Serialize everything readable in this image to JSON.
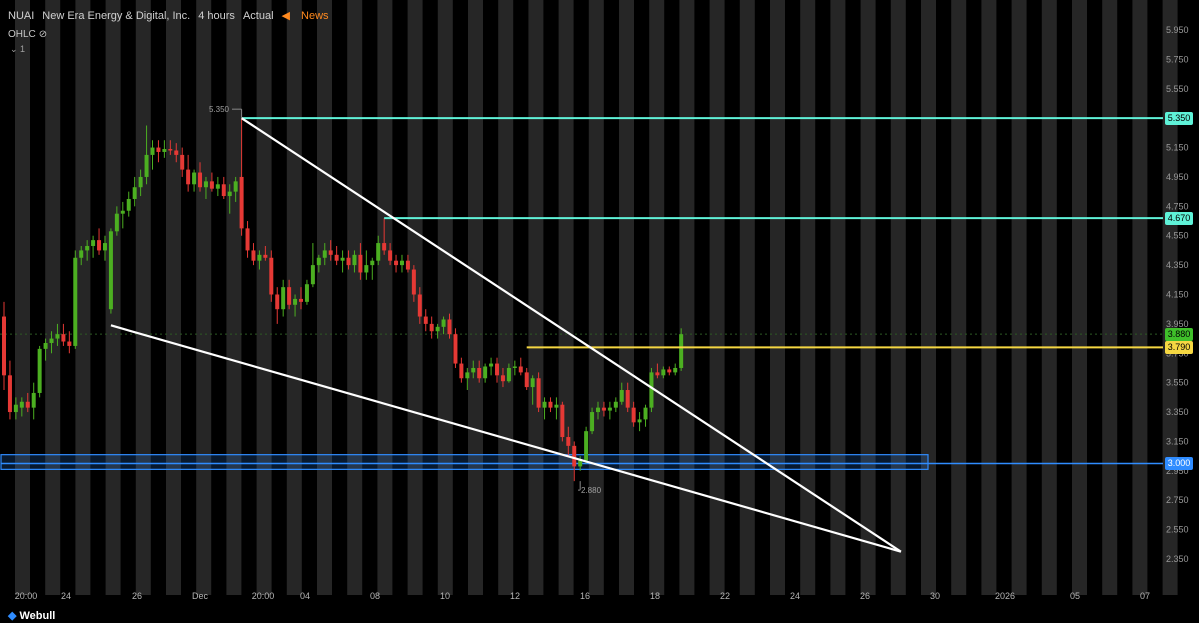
{
  "header": {
    "ticker": "NUAI",
    "company": "New Era Energy & Digital, Inc.",
    "interval": "4 hours",
    "mode": "Actual",
    "news_icon": "speaker-icon",
    "news_label": "News",
    "indicator": "OHLC",
    "indicator_icon": "eye-slash-icon",
    "collapse_label": "1"
  },
  "footer": {
    "brand": "Webull",
    "brand_icon": "webull-logo-icon"
  },
  "colors": {
    "up": "#4caf21",
    "down": "#e53935",
    "resistance": "#5ff2d8",
    "pivot": "#f5d742",
    "support": "#2f8cff",
    "trendline": "#ffffff",
    "session_band": "#262626",
    "last_price": "#3fbf2a"
  },
  "chart_data": {
    "type": "candlestick",
    "timeframe": "4 hours",
    "y_axis": {
      "ticks": [
        "5.950",
        "5.750",
        "5.550",
        "5.350",
        "5.150",
        "4.950",
        "4.750",
        "4.550",
        "4.350",
        "4.150",
        "3.950",
        "3.750",
        "3.550",
        "3.350",
        "3.150",
        "2.950",
        "2.750",
        "2.550",
        "2.350"
      ],
      "range": [
        2.2,
        6.05
      ]
    },
    "x_axis": {
      "labels": [
        "20:00",
        "24",
        "26",
        "Dec",
        "20:00",
        "04",
        "08",
        "10",
        "12",
        "16",
        "18",
        "22",
        "24",
        "26",
        "30",
        "2026",
        "05",
        "07"
      ]
    },
    "price_labels": [
      {
        "value": "5.350",
        "role": "resistance"
      },
      {
        "value": "4.670",
        "role": "resistance"
      },
      {
        "value": "3.880",
        "role": "last_price"
      },
      {
        "value": "3.790",
        "role": "pivot"
      },
      {
        "value": "3.000",
        "role": "support"
      }
    ],
    "annotations": {
      "high": "5.350",
      "low": "2.880"
    },
    "horizontal_lines": [
      {
        "value": 5.35,
        "start_bar": 40,
        "role": "resistance"
      },
      {
        "value": 4.67,
        "start_bar": 64,
        "role": "resistance"
      },
      {
        "value": 3.79,
        "start_bar": 88,
        "role": "pivot"
      }
    ],
    "support_zone": {
      "low": 2.96,
      "high": 3.06,
      "mid": 3.0
    },
    "trendlines": [
      {
        "from": {
          "bar": 40,
          "value": 5.35
        },
        "to": {
          "bar": 151,
          "value": 2.4
        }
      },
      {
        "from": {
          "bar": 18,
          "value": 3.94
        },
        "to": {
          "bar": 151,
          "value": 2.4
        }
      }
    ],
    "candles": [
      [
        4.0,
        4.1,
        3.5,
        3.6
      ],
      [
        3.6,
        3.7,
        3.3,
        3.35
      ],
      [
        3.35,
        3.45,
        3.3,
        3.4
      ],
      [
        3.38,
        3.45,
        3.32,
        3.42
      ],
      [
        3.42,
        3.48,
        3.35,
        3.38
      ],
      [
        3.38,
        3.55,
        3.3,
        3.48
      ],
      [
        3.48,
        3.8,
        3.45,
        3.78
      ],
      [
        3.78,
        3.85,
        3.7,
        3.82
      ],
      [
        3.82,
        3.9,
        3.75,
        3.85
      ],
      [
        3.85,
        3.95,
        3.8,
        3.88
      ],
      [
        3.88,
        3.95,
        3.8,
        3.83
      ],
      [
        3.83,
        3.9,
        3.75,
        3.8
      ],
      [
        3.8,
        4.45,
        3.78,
        4.4
      ],
      [
        4.4,
        4.48,
        4.35,
        4.45
      ],
      [
        4.45,
        4.52,
        4.38,
        4.48
      ],
      [
        4.48,
        4.55,
        4.4,
        4.52
      ],
      [
        4.52,
        4.6,
        4.42,
        4.45
      ],
      [
        4.45,
        4.55,
        4.38,
        4.5
      ],
      [
        4.05,
        4.6,
        4.02,
        4.58
      ],
      [
        4.58,
        4.75,
        4.55,
        4.7
      ],
      [
        4.7,
        4.78,
        4.6,
        4.72
      ],
      [
        4.72,
        4.85,
        4.68,
        4.8
      ],
      [
        4.8,
        4.95,
        4.75,
        4.88
      ],
      [
        4.88,
        5.0,
        4.82,
        4.95
      ],
      [
        4.95,
        5.3,
        4.9,
        5.1
      ],
      [
        5.1,
        5.2,
        5.0,
        5.15
      ],
      [
        5.15,
        5.2,
        5.05,
        5.12
      ],
      [
        5.12,
        5.2,
        5.08,
        5.14
      ],
      [
        5.14,
        5.2,
        5.1,
        5.13
      ],
      [
        5.13,
        5.18,
        5.05,
        5.1
      ],
      [
        5.1,
        5.15,
        4.95,
        5.0
      ],
      [
        5.0,
        5.1,
        4.85,
        4.9
      ],
      [
        4.9,
        5.0,
        4.85,
        4.98
      ],
      [
        4.98,
        5.05,
        4.85,
        4.88
      ],
      [
        4.88,
        4.95,
        4.8,
        4.92
      ],
      [
        4.92,
        4.98,
        4.85,
        4.87
      ],
      [
        4.87,
        4.95,
        4.82,
        4.9
      ],
      [
        4.9,
        4.95,
        4.8,
        4.82
      ],
      [
        4.82,
        4.9,
        4.7,
        4.85
      ],
      [
        4.85,
        4.95,
        4.78,
        4.92
      ],
      [
        4.95,
        5.35,
        4.55,
        4.6
      ],
      [
        4.6,
        4.65,
        4.4,
        4.45
      ],
      [
        4.45,
        4.5,
        4.35,
        4.38
      ],
      [
        4.38,
        4.45,
        4.32,
        4.42
      ],
      [
        4.42,
        4.48,
        4.38,
        4.4
      ],
      [
        4.4,
        4.45,
        4.1,
        4.15
      ],
      [
        4.15,
        4.2,
        3.95,
        4.05
      ],
      [
        4.05,
        4.25,
        4.0,
        4.2
      ],
      [
        4.2,
        4.25,
        4.05,
        4.08
      ],
      [
        4.08,
        4.15,
        4.0,
        4.12
      ],
      [
        4.12,
        4.2,
        4.05,
        4.1
      ],
      [
        4.1,
        4.25,
        4.08,
        4.22
      ],
      [
        4.22,
        4.5,
        4.2,
        4.35
      ],
      [
        4.35,
        4.42,
        4.3,
        4.4
      ],
      [
        4.4,
        4.5,
        4.35,
        4.45
      ],
      [
        4.45,
        4.52,
        4.38,
        4.42
      ],
      [
        4.42,
        4.48,
        4.35,
        4.38
      ],
      [
        4.38,
        4.45,
        4.3,
        4.4
      ],
      [
        4.4,
        4.45,
        4.32,
        4.35
      ],
      [
        4.35,
        4.45,
        4.3,
        4.42
      ],
      [
        4.42,
        4.5,
        4.25,
        4.3
      ],
      [
        4.3,
        4.45,
        4.25,
        4.35
      ],
      [
        4.35,
        4.4,
        4.25,
        4.38
      ],
      [
        4.38,
        4.55,
        4.35,
        4.5
      ],
      [
        4.5,
        4.67,
        4.42,
        4.45
      ],
      [
        4.45,
        4.5,
        4.35,
        4.38
      ],
      [
        4.38,
        4.42,
        4.3,
        4.35
      ],
      [
        4.35,
        4.42,
        4.3,
        4.38
      ],
      [
        4.38,
        4.42,
        4.3,
        4.32
      ],
      [
        4.32,
        4.35,
        4.1,
        4.15
      ],
      [
        4.15,
        4.2,
        3.95,
        4.0
      ],
      [
        4.0,
        4.05,
        3.9,
        3.95
      ],
      [
        3.95,
        4.0,
        3.85,
        3.9
      ],
      [
        3.9,
        3.95,
        3.85,
        3.93
      ],
      [
        3.93,
        4.0,
        3.88,
        3.98
      ],
      [
        3.98,
        4.02,
        3.85,
        3.88
      ],
      [
        3.88,
        3.92,
        3.65,
        3.68
      ],
      [
        3.68,
        3.72,
        3.55,
        3.58
      ],
      [
        3.58,
        3.65,
        3.5,
        3.62
      ],
      [
        3.62,
        3.7,
        3.58,
        3.65
      ],
      [
        3.65,
        3.7,
        3.55,
        3.58
      ],
      [
        3.58,
        3.68,
        3.55,
        3.66
      ],
      [
        3.66,
        3.72,
        3.6,
        3.68
      ],
      [
        3.68,
        3.72,
        3.55,
        3.6
      ],
      [
        3.6,
        3.65,
        3.52,
        3.56
      ],
      [
        3.56,
        3.68,
        3.55,
        3.65
      ],
      [
        3.65,
        3.7,
        3.6,
        3.66
      ],
      [
        3.66,
        3.72,
        3.6,
        3.62
      ],
      [
        3.62,
        3.65,
        3.5,
        3.52
      ],
      [
        3.52,
        3.6,
        3.4,
        3.58
      ],
      [
        3.58,
        3.62,
        3.35,
        3.38
      ],
      [
        3.38,
        3.45,
        3.3,
        3.42
      ],
      [
        3.42,
        3.45,
        3.35,
        3.38
      ],
      [
        3.38,
        3.45,
        3.3,
        3.4
      ],
      [
        3.4,
        3.42,
        3.15,
        3.18
      ],
      [
        3.18,
        3.25,
        3.05,
        3.12
      ],
      [
        3.12,
        3.15,
        2.88,
        2.98
      ],
      [
        2.98,
        3.05,
        2.95,
        3.02
      ],
      [
        3.02,
        3.25,
        3.0,
        3.22
      ],
      [
        3.22,
        3.38,
        3.2,
        3.35
      ],
      [
        3.35,
        3.42,
        3.3,
        3.38
      ],
      [
        3.38,
        3.42,
        3.32,
        3.36
      ],
      [
        3.36,
        3.42,
        3.3,
        3.38
      ],
      [
        3.38,
        3.45,
        3.35,
        3.42
      ],
      [
        3.42,
        3.55,
        3.4,
        3.5
      ],
      [
        3.5,
        3.55,
        3.35,
        3.38
      ],
      [
        3.38,
        3.42,
        3.25,
        3.28
      ],
      [
        3.28,
        3.35,
        3.22,
        3.3
      ],
      [
        3.3,
        3.4,
        3.25,
        3.38
      ],
      [
        3.38,
        3.65,
        3.35,
        3.62
      ],
      [
        3.62,
        3.68,
        3.58,
        3.6
      ],
      [
        3.6,
        3.66,
        3.58,
        3.64
      ],
      [
        3.64,
        3.66,
        3.6,
        3.62
      ],
      [
        3.62,
        3.68,
        3.6,
        3.65
      ],
      [
        3.65,
        3.92,
        3.63,
        3.88
      ]
    ]
  }
}
